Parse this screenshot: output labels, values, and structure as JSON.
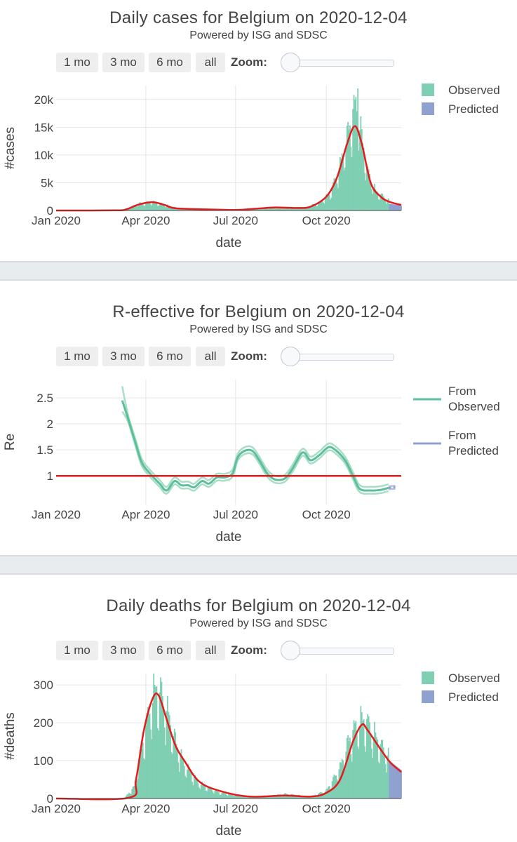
{
  "controls": {
    "buttons": [
      "1 mo",
      "3 mo",
      "6 mo",
      "all"
    ],
    "zoom_label": "Zoom:"
  },
  "colors": {
    "observed": "#7fcfb3",
    "predicted": "#8fa1cf",
    "smooth": "#e41a1c",
    "re_line": "#5bbf9a",
    "re_band": "#a8ddc7",
    "separator": "#e9ecef"
  },
  "chart_data": [
    {
      "type": "bar",
      "title": "Daily cases for Belgium on 2020-12-04",
      "subtitle": "Powered by ISG and SDSC",
      "xlabel": "date",
      "ylabel": "#cases",
      "x_ticks": [
        "Jan 2020",
        "Apr 2020",
        "Jul 2020",
        "Oct 2020"
      ],
      "x_tick_dates": [
        "2020-01-01",
        "2020-04-01",
        "2020-07-01",
        "2020-10-01"
      ],
      "x_range": [
        "2020-01-01",
        "2020-12-16"
      ],
      "ylim": [
        0,
        22500
      ],
      "y_ticks": [
        0,
        5000,
        10000,
        15000,
        20000
      ],
      "y_tick_labels": [
        "0",
        "5k",
        "10k",
        "15k",
        "20k"
      ],
      "grid": true,
      "legend_position": "top-right",
      "legend": [
        "Observed",
        "Predicted"
      ],
      "series": [
        {
          "name": "Observed",
          "kind": "daily",
          "knots": [
            [
              "2020-01-01",
              0
            ],
            [
              "2020-03-01",
              0
            ],
            [
              "2020-03-12",
              300
            ],
            [
              "2020-03-25",
              1200
            ],
            [
              "2020-04-05",
              1500
            ],
            [
              "2020-04-15",
              1300
            ],
            [
              "2020-05-01",
              500
            ],
            [
              "2020-06-01",
              200
            ],
            [
              "2020-07-01",
              120
            ],
            [
              "2020-07-20",
              300
            ],
            [
              "2020-08-10",
              600
            ],
            [
              "2020-08-25",
              500
            ],
            [
              "2020-09-10",
              500
            ],
            [
              "2020-09-25",
              1500
            ],
            [
              "2020-10-05",
              3000
            ],
            [
              "2020-10-15",
              8000
            ],
            [
              "2020-10-22",
              13000
            ],
            [
              "2020-10-28",
              17500
            ],
            [
              "2020-11-01",
              19000
            ],
            [
              "2020-11-05",
              14000
            ],
            [
              "2020-11-12",
              7000
            ],
            [
              "2020-11-20",
              3500
            ],
            [
              "2020-12-03",
              1800
            ]
          ],
          "peak": [
            "2020-11-02",
            22000
          ],
          "end": "2020-12-03"
        },
        {
          "name": "Predicted",
          "kind": "daily",
          "knots": [
            [
              "2020-12-04",
              1200
            ],
            [
              "2020-12-16",
              900
            ]
          ],
          "start": "2020-12-04",
          "end": "2020-12-16"
        },
        {
          "name": "Smoothed",
          "kind": "line",
          "points": [
            [
              "2020-01-01",
              0
            ],
            [
              "2020-03-01",
              20
            ],
            [
              "2020-03-12",
              200
            ],
            [
              "2020-03-25",
              1100
            ],
            [
              "2020-04-08",
              1500
            ],
            [
              "2020-04-20",
              1000
            ],
            [
              "2020-05-01",
              400
            ],
            [
              "2020-06-01",
              200
            ],
            [
              "2020-07-01",
              100
            ],
            [
              "2020-07-20",
              300
            ],
            [
              "2020-08-10",
              550
            ],
            [
              "2020-09-01",
              450
            ],
            [
              "2020-09-15",
              700
            ],
            [
              "2020-10-01",
              2500
            ],
            [
              "2020-10-12",
              6000
            ],
            [
              "2020-10-22",
              12000
            ],
            [
              "2020-10-30",
              15200
            ],
            [
              "2020-11-06",
              12000
            ],
            [
              "2020-11-15",
              5000
            ],
            [
              "2020-11-25",
              2500
            ],
            [
              "2020-12-05",
              1500
            ],
            [
              "2020-12-16",
              1000
            ]
          ]
        }
      ]
    },
    {
      "type": "line",
      "title": "R-effective for Belgium on 2020-12-04",
      "subtitle": "Powered by ISG and SDSC",
      "xlabel": "date",
      "ylabel": "Re",
      "x_ticks": [
        "Jan 2020",
        "Apr 2020",
        "Jul 2020",
        "Oct 2020"
      ],
      "x_tick_dates": [
        "2020-01-01",
        "2020-04-01",
        "2020-07-01",
        "2020-10-01"
      ],
      "x_range": [
        "2020-01-01",
        "2020-12-16"
      ],
      "ylim": [
        0.45,
        2.85
      ],
      "y_ticks": [
        1,
        1.5,
        2,
        2.5
      ],
      "y_tick_labels": [
        "1",
        "1.5",
        "2",
        "2.5"
      ],
      "grid": true,
      "legend_position": "top-right",
      "legend": [
        "From Observed",
        "From Predicted"
      ],
      "reference_line": 1,
      "series": [
        {
          "name": "From Observed",
          "band": 0.07,
          "points": [
            [
              "2020-03-08",
              2.45
            ],
            [
              "2020-03-14",
              2.1
            ],
            [
              "2020-03-22",
              1.6
            ],
            [
              "2020-03-28",
              1.25
            ],
            [
              "2020-04-05",
              1.05
            ],
            [
              "2020-04-15",
              0.85
            ],
            [
              "2020-04-22",
              0.72
            ],
            [
              "2020-04-30",
              0.9
            ],
            [
              "2020-05-07",
              0.82
            ],
            [
              "2020-05-14",
              0.82
            ],
            [
              "2020-05-20",
              0.78
            ],
            [
              "2020-05-28",
              0.9
            ],
            [
              "2020-06-04",
              0.85
            ],
            [
              "2020-06-12",
              0.97
            ],
            [
              "2020-06-20",
              0.97
            ],
            [
              "2020-06-28",
              1.05
            ],
            [
              "2020-07-03",
              1.35
            ],
            [
              "2020-07-10",
              1.48
            ],
            [
              "2020-07-18",
              1.48
            ],
            [
              "2020-07-25",
              1.3
            ],
            [
              "2020-08-02",
              1.05
            ],
            [
              "2020-08-10",
              0.93
            ],
            [
              "2020-08-20",
              0.95
            ],
            [
              "2020-08-28",
              1.15
            ],
            [
              "2020-09-07",
              1.45
            ],
            [
              "2020-09-15",
              1.3
            ],
            [
              "2020-09-24",
              1.4
            ],
            [
              "2020-10-03",
              1.55
            ],
            [
              "2020-10-10",
              1.5
            ],
            [
              "2020-10-20",
              1.3
            ],
            [
              "2020-10-28",
              1.0
            ],
            [
              "2020-11-04",
              0.75
            ],
            [
              "2020-11-15",
              0.72
            ],
            [
              "2020-11-25",
              0.73
            ],
            [
              "2020-12-03",
              0.77
            ]
          ]
        },
        {
          "name": "From Predicted",
          "band": 0.03,
          "points": [
            [
              "2020-12-03",
              0.77
            ],
            [
              "2020-12-10",
              0.78
            ]
          ]
        }
      ]
    },
    {
      "type": "bar",
      "title": "Daily deaths for Belgium on 2020-12-04",
      "subtitle": "Powered by ISG and SDSC",
      "xlabel": "date",
      "ylabel": "#deaths",
      "x_ticks": [
        "Jan 2020",
        "Apr 2020",
        "Jul 2020",
        "Oct 2020"
      ],
      "x_tick_dates": [
        "2020-01-01",
        "2020-04-01",
        "2020-07-01",
        "2020-10-01"
      ],
      "x_range": [
        "2020-01-01",
        "2020-12-16"
      ],
      "ylim": [
        0,
        330
      ],
      "y_ticks": [
        0,
        100,
        200,
        300
      ],
      "y_tick_labels": [
        "0",
        "100",
        "200",
        "300"
      ],
      "grid": true,
      "legend_position": "top-right",
      "legend": [
        "Observed",
        "Predicted"
      ],
      "series": [
        {
          "name": "Observed",
          "kind": "daily",
          "knots": [
            [
              "2020-01-01",
              0
            ],
            [
              "2020-03-10",
              0
            ],
            [
              "2020-03-20",
              30
            ],
            [
              "2020-03-28",
              130
            ],
            [
              "2020-04-05",
              240
            ],
            [
              "2020-04-12",
              290
            ],
            [
              "2020-04-20",
              250
            ],
            [
              "2020-05-01",
              150
            ],
            [
              "2020-05-10",
              90
            ],
            [
              "2020-05-25",
              40
            ],
            [
              "2020-06-15",
              15
            ],
            [
              "2020-07-15",
              5
            ],
            [
              "2020-08-10",
              8
            ],
            [
              "2020-08-20",
              12
            ],
            [
              "2020-09-15",
              5
            ],
            [
              "2020-10-01",
              20
            ],
            [
              "2020-10-15",
              80
            ],
            [
              "2020-10-25",
              160
            ],
            [
              "2020-11-03",
              200
            ],
            [
              "2020-11-10",
              205
            ],
            [
              "2020-11-20",
              160
            ],
            [
              "2020-12-03",
              110
            ]
          ],
          "peak": [
            "2020-04-16",
            320
          ],
          "end": "2020-12-03"
        },
        {
          "name": "Predicted",
          "kind": "daily",
          "knots": [
            [
              "2020-12-04",
              100
            ],
            [
              "2020-12-16",
              75
            ]
          ],
          "start": "2020-12-04",
          "end": "2020-12-16"
        },
        {
          "name": "Smoothed",
          "kind": "line",
          "points": [
            [
              "2020-01-01",
              0
            ],
            [
              "2020-03-15",
              2
            ],
            [
              "2020-03-22",
              50
            ],
            [
              "2020-03-30",
              180
            ],
            [
              "2020-04-08",
              265
            ],
            [
              "2020-04-14",
              272
            ],
            [
              "2020-04-22",
              210
            ],
            [
              "2020-05-01",
              140
            ],
            [
              "2020-05-10",
              100
            ],
            [
              "2020-05-25",
              45
            ],
            [
              "2020-06-15",
              20
            ],
            [
              "2020-07-15",
              5
            ],
            [
              "2020-08-20",
              8
            ],
            [
              "2020-09-15",
              5
            ],
            [
              "2020-10-01",
              15
            ],
            [
              "2020-10-15",
              50
            ],
            [
              "2020-10-28",
              150
            ],
            [
              "2020-11-06",
              195
            ],
            [
              "2020-11-12",
              180
            ],
            [
              "2020-11-25",
              130
            ],
            [
              "2020-12-05",
              95
            ],
            [
              "2020-12-16",
              70
            ]
          ]
        }
      ]
    }
  ]
}
